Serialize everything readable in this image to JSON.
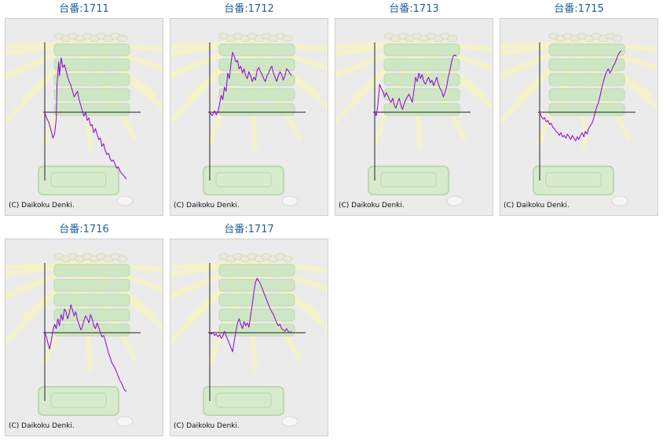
{
  "colors": {
    "line": "#8f00d8",
    "axis": "#222222",
    "title": "#1f5f9a",
    "panel_bg": "#ebebeb"
  },
  "chart_data": [
    {
      "type": "line",
      "title": "台番:1711",
      "copyright": "(C) Daikoku Denki.",
      "grid": false,
      "ylim": [
        -1,
        1
      ],
      "series": [
        {
          "x": [
            0,
            2,
            5,
            8,
            10,
            12,
            14,
            15,
            17,
            18,
            20,
            22,
            24,
            26,
            28,
            30,
            32,
            34,
            36,
            38,
            40,
            42,
            44,
            46,
            48,
            50,
            52,
            54,
            56,
            58,
            60,
            62,
            64,
            66,
            68,
            70,
            72,
            74,
            76,
            78,
            80,
            82,
            84,
            86,
            88,
            90,
            92,
            94,
            96,
            98,
            100
          ],
          "y": [
            0,
            -0.08,
            -0.15,
            -0.28,
            -0.38,
            -0.32,
            -0.1,
            0.4,
            0.72,
            0.52,
            0.78,
            0.64,
            0.68,
            0.6,
            0.5,
            0.44,
            0.38,
            0.3,
            0.22,
            0.26,
            0.3,
            0.18,
            0.1,
            0.02,
            -0.06,
            0.0,
            -0.12,
            -0.08,
            -0.2,
            -0.18,
            -0.3,
            -0.24,
            -0.32,
            -0.4,
            -0.38,
            -0.5,
            -0.46,
            -0.56,
            -0.62,
            -0.6,
            -0.68,
            -0.72,
            -0.7,
            -0.76,
            -0.82,
            -0.8,
            -0.86,
            -0.9,
            -0.92,
            -0.95,
            -0.98
          ]
        }
      ]
    },
    {
      "type": "line",
      "title": "台番:1712",
      "copyright": "(C) Daikoku Denki.",
      "grid": false,
      "ylim": [
        -1,
        1
      ],
      "series": [
        {
          "x": [
            0,
            3,
            6,
            8,
            10,
            12,
            14,
            16,
            18,
            20,
            22,
            24,
            26,
            28,
            30,
            32,
            34,
            36,
            38,
            40,
            42,
            44,
            46,
            48,
            50,
            52,
            54,
            56,
            58,
            60,
            62,
            64,
            66,
            68,
            70,
            72,
            74,
            76,
            78,
            80,
            82,
            84,
            86,
            88,
            90,
            92,
            94,
            96,
            98,
            100
          ],
          "y": [
            0,
            -0.05,
            0.02,
            -0.04,
            0.01,
            0.12,
            0.24,
            0.18,
            0.36,
            0.3,
            0.56,
            0.48,
            0.7,
            0.86,
            0.8,
            0.72,
            0.74,
            0.62,
            0.66,
            0.56,
            0.62,
            0.52,
            0.48,
            0.58,
            0.52,
            0.44,
            0.5,
            0.46,
            0.6,
            0.64,
            0.58,
            0.54,
            0.48,
            0.44,
            0.52,
            0.56,
            0.62,
            0.66,
            0.56,
            0.5,
            0.44,
            0.52,
            0.58,
            0.54,
            0.46,
            0.52,
            0.62,
            0.6,
            0.56,
            0.52
          ]
        }
      ]
    },
    {
      "type": "line",
      "title": "台番:1713",
      "copyright": "(C) Daikoku Denki.",
      "grid": false,
      "ylim": [
        -1,
        1
      ],
      "series": [
        {
          "x": [
            0,
            2,
            4,
            6,
            8,
            10,
            12,
            14,
            16,
            18,
            20,
            22,
            24,
            26,
            28,
            30,
            32,
            34,
            36,
            38,
            40,
            42,
            44,
            46,
            48,
            50,
            52,
            54,
            56,
            58,
            60,
            62,
            64,
            66,
            68,
            70,
            72,
            74,
            76,
            78,
            80,
            82,
            84,
            86,
            88,
            90,
            92,
            94,
            96,
            98,
            100
          ],
          "y": [
            0,
            -0.05,
            0.12,
            0.4,
            0.34,
            0.3,
            0.22,
            0.28,
            0.24,
            0.18,
            0.14,
            0.2,
            0.1,
            0.06,
            0.14,
            0.2,
            0.1,
            0.04,
            0.12,
            0.18,
            0.22,
            0.26,
            0.2,
            0.14,
            0.3,
            0.5,
            0.44,
            0.56,
            0.48,
            0.54,
            0.44,
            0.4,
            0.46,
            0.5,
            0.42,
            0.46,
            0.38,
            0.44,
            0.5,
            0.4,
            0.34,
            0.3,
            0.22,
            0.28,
            0.36,
            0.5,
            0.6,
            0.72,
            0.8,
            0.82,
            0.8
          ]
        }
      ]
    },
    {
      "type": "line",
      "title": "台番:1715",
      "copyright": "(C) Daikoku Denki.",
      "grid": false,
      "ylim": [
        -1,
        1
      ],
      "series": [
        {
          "x": [
            0,
            2,
            4,
            6,
            8,
            10,
            12,
            14,
            16,
            18,
            20,
            22,
            24,
            26,
            28,
            30,
            32,
            34,
            36,
            38,
            40,
            42,
            44,
            46,
            48,
            50,
            52,
            54,
            56,
            58,
            60,
            62,
            64,
            66,
            68,
            70,
            72,
            74,
            76,
            78,
            80,
            82,
            84,
            86,
            88,
            90,
            92,
            94,
            96,
            98,
            100
          ],
          "y": [
            0,
            -0.06,
            -0.1,
            -0.08,
            -0.14,
            -0.12,
            -0.18,
            -0.16,
            -0.22,
            -0.24,
            -0.28,
            -0.3,
            -0.34,
            -0.3,
            -0.36,
            -0.34,
            -0.38,
            -0.32,
            -0.36,
            -0.4,
            -0.34,
            -0.38,
            -0.42,
            -0.36,
            -0.4,
            -0.34,
            -0.3,
            -0.36,
            -0.28,
            -0.32,
            -0.24,
            -0.2,
            -0.16,
            -0.1,
            0.0,
            0.08,
            0.14,
            0.24,
            0.34,
            0.44,
            0.52,
            0.58,
            0.62,
            0.56,
            0.6,
            0.66,
            0.7,
            0.76,
            0.82,
            0.86,
            0.88
          ]
        }
      ]
    },
    {
      "type": "line",
      "title": "台番:1716",
      "copyright": "(C) Daikoku Denki.",
      "grid": false,
      "ylim": [
        -1,
        1
      ],
      "series": [
        {
          "x": [
            0,
            2,
            4,
            6,
            8,
            10,
            12,
            14,
            16,
            18,
            20,
            22,
            24,
            26,
            28,
            30,
            32,
            34,
            36,
            38,
            40,
            42,
            44,
            46,
            48,
            50,
            52,
            54,
            56,
            58,
            60,
            62,
            64,
            66,
            68,
            70,
            72,
            74,
            76,
            78,
            80,
            82,
            84,
            86,
            88,
            90,
            92,
            94,
            96,
            98,
            100
          ],
          "y": [
            0,
            -0.06,
            -0.16,
            -0.24,
            -0.12,
            0.04,
            0.12,
            0.06,
            0.2,
            0.1,
            0.26,
            0.18,
            0.34,
            0.3,
            0.2,
            0.28,
            0.4,
            0.32,
            0.24,
            0.3,
            0.18,
            0.12,
            0.04,
            0.08,
            0.18,
            0.24,
            0.2,
            0.14,
            0.26,
            0.2,
            0.1,
            0.06,
            0.14,
            0.08,
            0.0,
            -0.06,
            -0.04,
            -0.12,
            -0.2,
            -0.3,
            -0.36,
            -0.44,
            -0.48,
            -0.52,
            -0.58,
            -0.64,
            -0.7,
            -0.74,
            -0.8,
            -0.84,
            -0.86
          ]
        }
      ]
    },
    {
      "type": "line",
      "title": "台番:1717",
      "copyright": "(C) Daikoku Denki.",
      "grid": false,
      "ylim": [
        -1,
        1
      ],
      "series": [
        {
          "x": [
            0,
            2,
            4,
            6,
            8,
            10,
            12,
            14,
            16,
            18,
            20,
            22,
            24,
            26,
            28,
            30,
            32,
            34,
            36,
            38,
            40,
            42,
            44,
            46,
            48,
            50,
            52,
            54,
            56,
            58,
            60,
            62,
            64,
            66,
            68,
            70,
            72,
            74,
            76,
            78,
            80,
            82,
            84,
            86,
            88,
            90,
            92,
            94,
            96,
            98,
            100
          ],
          "y": [
            0,
            -0.02,
            0.01,
            -0.04,
            -0.02,
            -0.06,
            -0.03,
            -0.08,
            -0.05,
            0.02,
            -0.04,
            -0.1,
            -0.16,
            -0.22,
            -0.28,
            -0.12,
            0.02,
            0.14,
            0.2,
            0.12,
            0.06,
            0.16,
            0.1,
            0.14,
            0.08,
            0.24,
            0.4,
            0.58,
            0.72,
            0.78,
            0.74,
            0.7,
            0.64,
            0.58,
            0.52,
            0.46,
            0.4,
            0.34,
            0.3,
            0.26,
            0.2,
            0.14,
            0.1,
            0.12,
            0.06,
            0.04,
            0.02,
            0.06,
            0.02,
            0.0,
            0.02
          ]
        }
      ]
    }
  ]
}
